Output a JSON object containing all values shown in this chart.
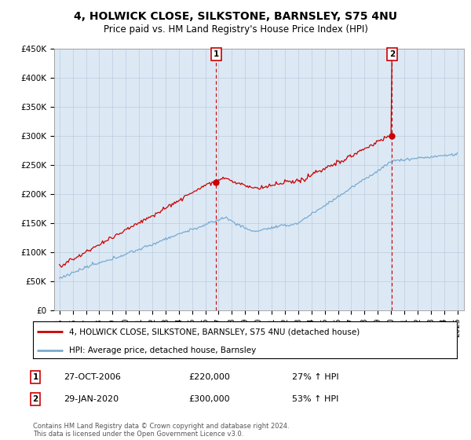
{
  "title": "4, HOLWICK CLOSE, SILKSTONE, BARNSLEY, S75 4NU",
  "subtitle": "Price paid vs. HM Land Registry's House Price Index (HPI)",
  "ylim": [
    0,
    450000
  ],
  "yticks": [
    0,
    50000,
    100000,
    150000,
    200000,
    250000,
    300000,
    350000,
    400000,
    450000
  ],
  "ytick_labels": [
    "£0",
    "£50K",
    "£100K",
    "£150K",
    "£200K",
    "£250K",
    "£300K",
    "£350K",
    "£400K",
    "£450K"
  ],
  "xlabel_years": [
    1995,
    1996,
    1997,
    1998,
    1999,
    2000,
    2001,
    2002,
    2003,
    2004,
    2005,
    2006,
    2007,
    2008,
    2009,
    2010,
    2011,
    2012,
    2013,
    2014,
    2015,
    2016,
    2017,
    2018,
    2019,
    2020,
    2021,
    2022,
    2023,
    2024,
    2025
  ],
  "sale1_date": 2006.82,
  "sale1_price": 220000,
  "sale1_label": "1",
  "sale1_display": "27-OCT-2006",
  "sale1_hpi_pct": "27% ↑ HPI",
  "sale2_date": 2020.08,
  "sale2_price": 300000,
  "sale2_label": "2",
  "sale2_display": "29-JAN-2020",
  "sale2_hpi_pct": "53% ↑ HPI",
  "legend_line1": "4, HOLWICK CLOSE, SILKSTONE, BARNSLEY, S75 4NU (detached house)",
  "legend_line2": "HPI: Average price, detached house, Barnsley",
  "footer": "Contains HM Land Registry data © Crown copyright and database right 2024.\nThis data is licensed under the Open Government Licence v3.0.",
  "line_color_red": "#cc0000",
  "line_color_blue": "#7aaad0",
  "background_color": "#ffffff",
  "chart_bg_color": "#dce9f5",
  "grid_color": "#bbccdd"
}
